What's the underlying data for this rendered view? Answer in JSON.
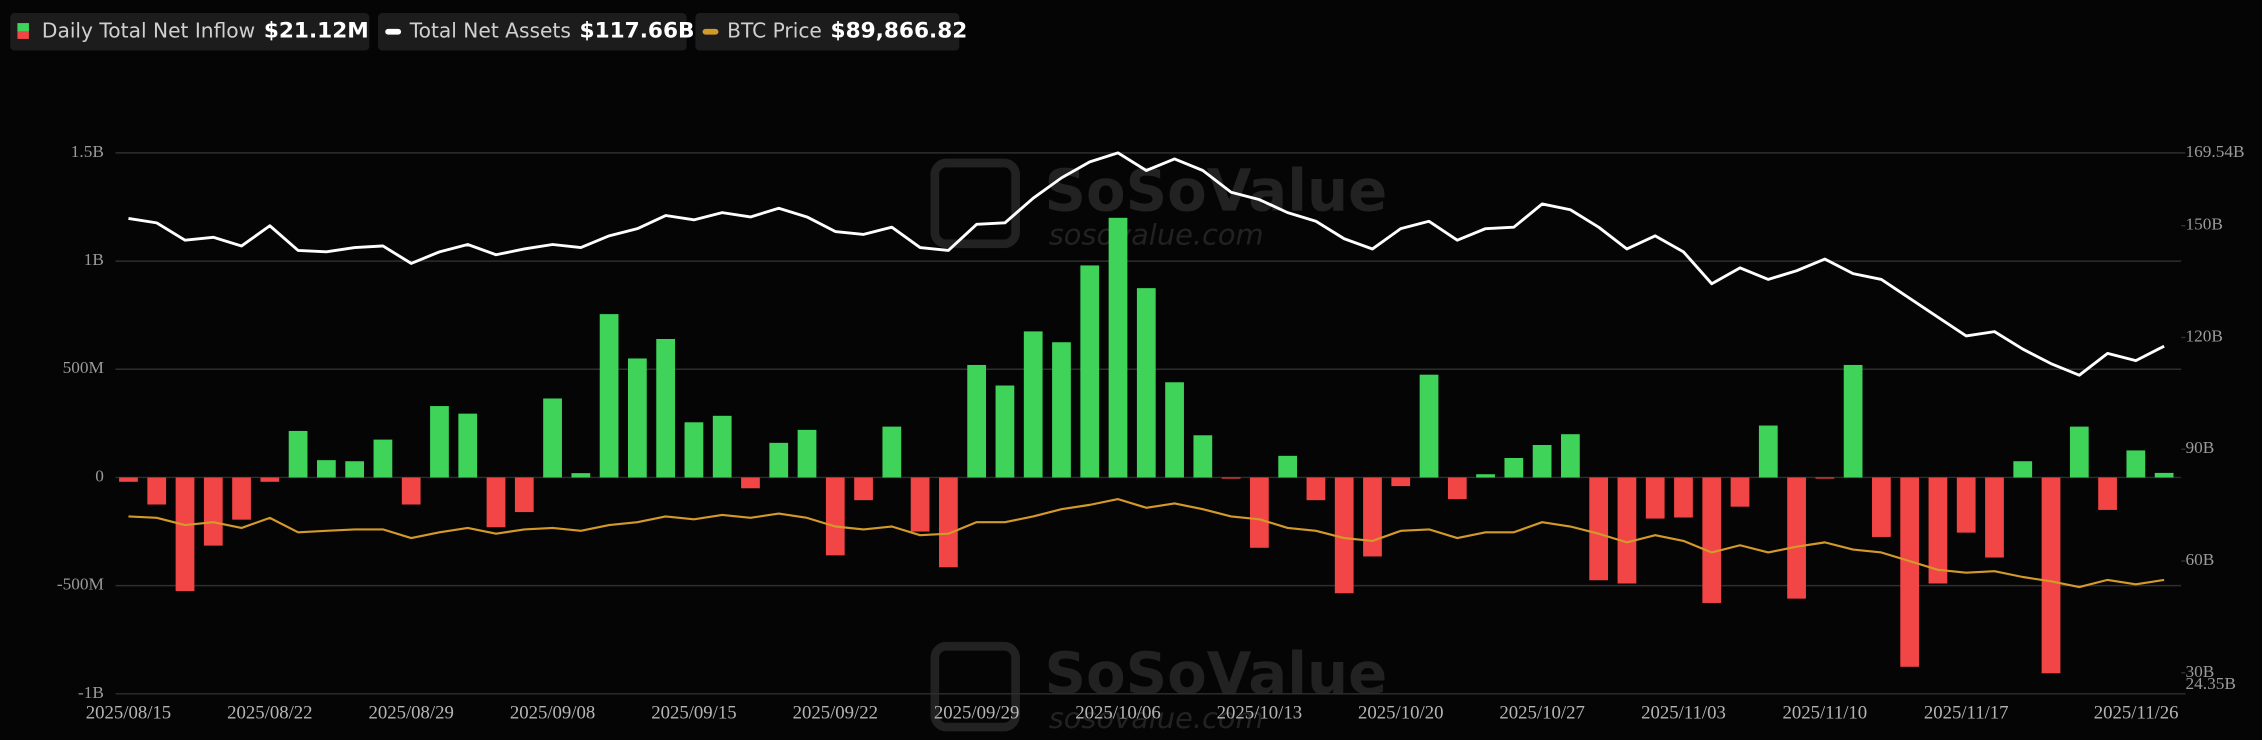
{
  "chart_data": {
    "type": "bar",
    "background": "#050505",
    "watermark": {
      "name": "SoSoValue",
      "url": "sosovalue.com"
    },
    "categories": [
      "2025/08/15",
      null,
      null,
      null,
      null,
      "2025/08/22",
      null,
      null,
      null,
      null,
      "2025/08/29",
      null,
      null,
      null,
      null,
      "2025/09/08",
      null,
      null,
      null,
      null,
      "2025/09/15",
      null,
      null,
      null,
      null,
      "2025/09/22",
      null,
      null,
      null,
      null,
      "2025/09/29",
      null,
      null,
      null,
      null,
      "2025/10/06",
      null,
      null,
      null,
      null,
      "2025/10/13",
      null,
      null,
      null,
      null,
      "2025/10/20",
      null,
      null,
      null,
      null,
      "2025/10/27",
      null,
      null,
      null,
      null,
      "2025/11/03",
      null,
      null,
      null,
      null,
      "2025/11/10",
      null,
      null,
      null,
      null,
      "2025/11/17",
      null,
      null,
      null,
      null,
      null,
      null,
      "2025/11/26"
    ],
    "ylim": [
      -1000000000,
      1500000000
    ],
    "yticks": [
      {
        "value": -1000000000,
        "label": "-1B"
      },
      {
        "value": -500000000,
        "label": "-500M"
      },
      0,
      {
        "value": 500000000,
        "label": "500M"
      },
      {
        "value": 1000000000,
        "label": "1B"
      },
      {
        "value": 1500000000,
        "label": "1.5B"
      }
    ],
    "y2lim": [
      24.35,
      169.54
    ],
    "y2ticks": [
      {
        "value": 24.35,
        "label": "24.35B"
      },
      {
        "value": 30,
        "label": "30B"
      },
      {
        "value": 60,
        "label": "60B"
      },
      {
        "value": 90,
        "label": "90B"
      },
      {
        "value": 120,
        "label": "120B"
      },
      {
        "value": 150,
        "label": "150B"
      },
      {
        "value": 169.54,
        "label": "169.54B"
      }
    ],
    "y3lim": [
      40355,
      275480
    ],
    "grid": true,
    "series": [
      {
        "name": "Daily Total Net Inflow",
        "type": "bar",
        "latest_label": "$21.12M",
        "color": "#3fd35a",
        "negative_color": "#f24545",
        "values": [
          -20000000,
          -125000000,
          -525000000,
          -315000000,
          -195000000,
          -20000000,
          215000000,
          80000000,
          75000000,
          175000000,
          -125000000,
          330000000,
          295000000,
          -230000000,
          -160000000,
          365000000,
          20000000,
          755000000,
          550000000,
          640000000,
          255000000,
          285000000,
          -50000000,
          160000000,
          220000000,
          -360000000,
          -105000000,
          235000000,
          -250000000,
          -415000000,
          520000000,
          425000000,
          675000000,
          625000000,
          980000000,
          1200000000,
          875000000,
          440000000,
          195000000,
          -5000000,
          -325000000,
          100000000,
          -105000000,
          -535000000,
          -365000000,
          -40000000,
          475000000,
          -100000000,
          15000000,
          90000000,
          150000000,
          200000000,
          -475000000,
          -490000000,
          -190000000,
          -185000000,
          -580000000,
          -135000000,
          240000000,
          -560000000,
          -5000000,
          520000000,
          -275000000,
          -875000000,
          -490000000,
          -255000000,
          -370000000,
          75000000,
          -905000000,
          235000000,
          -150000000,
          125000000,
          21120000
        ]
      },
      {
        "name": "Total Net Assets",
        "type": "line",
        "axis": "y2",
        "latest_label": "$117.66B",
        "color": "#ffffff",
        "values": [
          151.95,
          150.78,
          146.1,
          146.88,
          144.55,
          150.0,
          143.38,
          142.99,
          144.16,
          144.55,
          139.87,
          142.99,
          144.94,
          142.21,
          143.77,
          144.94,
          144.16,
          147.27,
          149.22,
          152.73,
          151.56,
          153.51,
          152.34,
          154.67,
          152.34,
          148.44,
          147.66,
          149.61,
          144.16,
          143.38,
          150.39,
          150.78,
          157.4,
          162.86,
          167.14,
          169.54,
          164.8,
          167.92,
          164.8,
          158.96,
          157.01,
          153.51,
          151.17,
          146.49,
          143.77,
          149.22,
          151.17,
          146.1,
          149.22,
          149.61,
          155.84,
          154.29,
          149.61,
          143.77,
          147.27,
          142.99,
          134.42,
          138.7,
          135.59,
          137.92,
          141.04,
          137.14,
          135.59,
          130.52,
          125.46,
          120.39,
          121.56,
          116.89,
          112.99,
          109.88,
          115.72,
          113.77,
          117.66
        ]
      },
      {
        "name": "BTC Price",
        "type": "line",
        "axis": "y3",
        "latest_label": "$89,866.82",
        "color": "#d39a2a",
        "values": [
          117476,
          116849,
          113714,
          114968,
          112460,
          116849,
          110579,
          111206,
          111833,
          111833,
          108071,
          110579,
          112460,
          109952,
          111833,
          112460,
          111206,
          113714,
          114968,
          117476,
          116222,
          118103,
          116849,
          118730,
          116849,
          113087,
          111833,
          113087,
          109325,
          109952,
          114968,
          114968,
          117476,
          120611,
          122492,
          125000,
          121238,
          123119,
          120611,
          117476,
          116222,
          112460,
          111206,
          108071,
          106817,
          111206,
          111833,
          108071,
          110579,
          110579,
          114968,
          113087,
          109952,
          106190,
          109325,
          106817,
          101801,
          104936,
          101801,
          104309,
          106190,
          103055,
          101801,
          98039,
          94277,
          93023,
          93650,
          91142,
          89261,
          86753,
          89888,
          87967,
          89866.82
        ]
      }
    ]
  }
}
